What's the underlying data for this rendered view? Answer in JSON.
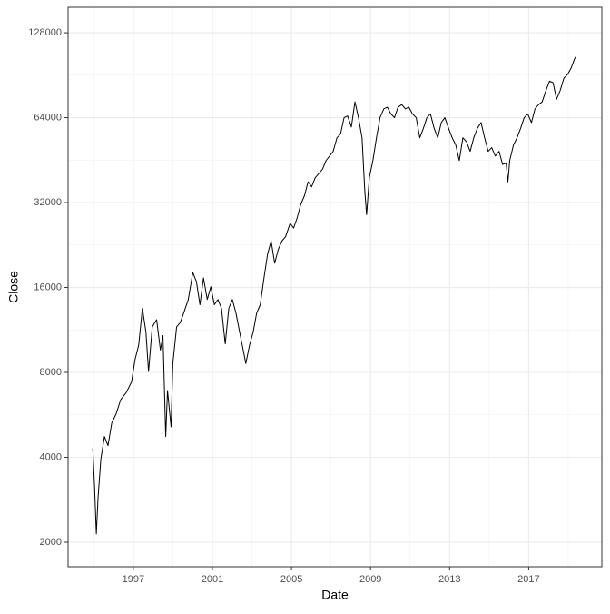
{
  "chart_data": {
    "type": "line",
    "x_label": "Date",
    "y_label": "Close",
    "x": [
      1994.95,
      1995.04,
      1995.13,
      1995.22,
      1995.36,
      1995.54,
      1995.72,
      1995.91,
      1996.13,
      1996.36,
      1996.64,
      1996.91,
      1997.09,
      1997.27,
      1997.46,
      1997.64,
      1997.77,
      1997.96,
      1998.18,
      1998.37,
      1998.5,
      1998.64,
      1998.73,
      1998.91,
      1999.0,
      1999.19,
      1999.37,
      1999.55,
      1999.78,
      2000.01,
      2000.19,
      2000.37,
      2000.55,
      2000.74,
      2000.92,
      2001.1,
      2001.28,
      2001.46,
      2001.65,
      2001.83,
      2002.01,
      2002.19,
      2002.38,
      2002.56,
      2002.69,
      2002.88,
      2003.06,
      2003.24,
      2003.42,
      2003.61,
      2003.79,
      2003.97,
      2004.15,
      2004.33,
      2004.52,
      2004.7,
      2004.93,
      2005.11,
      2005.29,
      2005.47,
      2005.66,
      2005.84,
      2006.02,
      2006.2,
      2006.39,
      2006.57,
      2006.75,
      2006.93,
      2007.11,
      2007.3,
      2007.48,
      2007.66,
      2007.84,
      2008.03,
      2008.21,
      2008.39,
      2008.57,
      2008.71,
      2008.8,
      2008.94,
      2009.12,
      2009.3,
      2009.48,
      2009.67,
      2009.85,
      2010.03,
      2010.21,
      2010.39,
      2010.58,
      2010.76,
      2010.94,
      2011.12,
      2011.31,
      2011.49,
      2011.67,
      2011.85,
      2012.03,
      2012.22,
      2012.4,
      2012.58,
      2012.76,
      2012.95,
      2013.13,
      2013.31,
      2013.49,
      2013.67,
      2013.86,
      2014.04,
      2014.22,
      2014.4,
      2014.59,
      2014.77,
      2014.95,
      2015.13,
      2015.31,
      2015.5,
      2015.68,
      2015.86,
      2015.95,
      2016.04,
      2016.23,
      2016.41,
      2016.59,
      2016.77,
      2016.95,
      2017.14,
      2017.32,
      2017.5,
      2017.68,
      2017.87,
      2018.05,
      2018.23,
      2018.41,
      2018.59,
      2018.78,
      2018.96,
      2019.14,
      2019.32,
      2019.37
    ],
    "values": [
      4300,
      3150,
      2140,
      2900,
      3950,
      4740,
      4400,
      5300,
      5700,
      6400,
      6780,
      7400,
      8900,
      9990,
      13500,
      11100,
      8060,
      11600,
      12300,
      9600,
      10800,
      4740,
      6900,
      5130,
      8600,
      11600,
      12000,
      13000,
      14500,
      18100,
      16800,
      13900,
      17300,
      14500,
      16100,
      13900,
      14500,
      13500,
      10100,
      13500,
      14500,
      13000,
      11100,
      9600,
      8600,
      10000,
      11100,
      13000,
      13900,
      17300,
      21000,
      23400,
      19500,
      21800,
      23400,
      24200,
      27000,
      26000,
      28300,
      31500,
      33900,
      37900,
      36400,
      39200,
      40600,
      42000,
      45100,
      46800,
      48600,
      54300,
      56000,
      64000,
      64900,
      59300,
      72800,
      64000,
      54300,
      35100,
      29000,
      39300,
      45100,
      54300,
      64000,
      68800,
      69700,
      66000,
      64000,
      69700,
      71200,
      68800,
      69700,
      66000,
      64000,
      54300,
      58600,
      64000,
      66000,
      58600,
      54300,
      61500,
      64000,
      58600,
      54300,
      51200,
      45100,
      54300,
      52500,
      48600,
      54300,
      58600,
      61500,
      54300,
      48600,
      50100,
      46800,
      48600,
      43700,
      44100,
      37900,
      45100,
      51200,
      54300,
      58600,
      64000,
      66000,
      61500,
      68800,
      71200,
      72800,
      79800,
      86200,
      85200,
      74400,
      79800,
      88300,
      91000,
      95700,
      103500,
      105000
    ],
    "color": "#000000",
    "xlim": [
      1993.7,
      2020.7
    ],
    "xticks": [
      1997,
      2001,
      2005,
      2009,
      2013,
      2017
    ],
    "ylim": [
      1637,
      157600
    ],
    "yticks": [
      2000,
      4000,
      8000,
      16000,
      32000,
      64000,
      128000
    ],
    "log_y": true,
    "grid": true
  }
}
